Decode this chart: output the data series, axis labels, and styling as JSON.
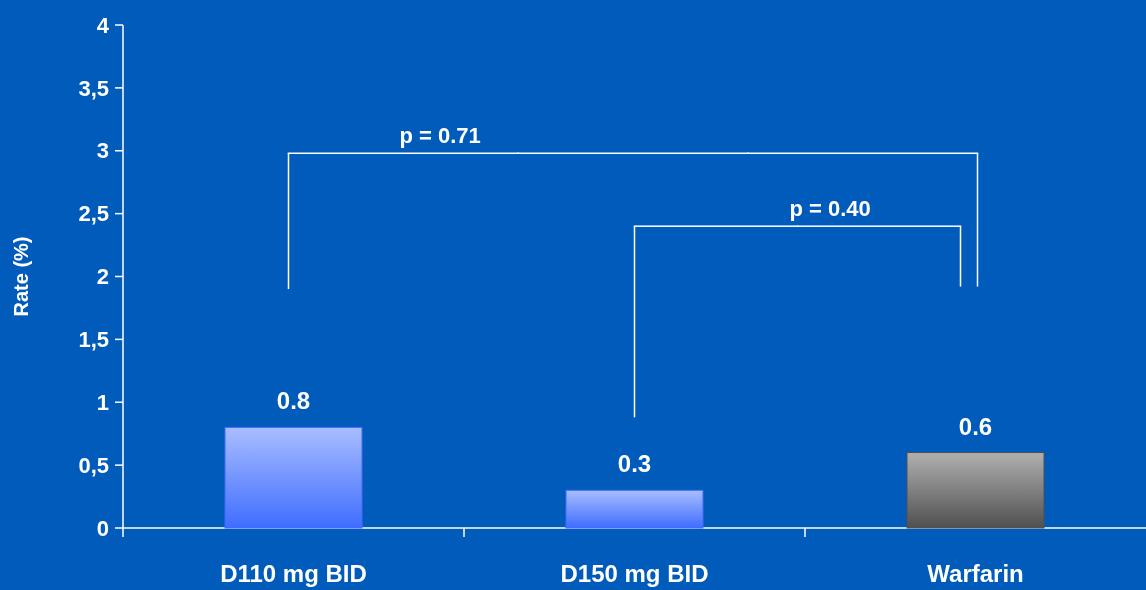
{
  "chart_data": {
    "type": "bar",
    "ylabel": "Rate (%)",
    "categories": [
      "D110 mg BID",
      "D150 mg BID",
      "Warfarin"
    ],
    "values": [
      0.8,
      0.3,
      0.6
    ],
    "colors": [
      "#3f6dff",
      "#3f6dff",
      "#505050"
    ],
    "data_labels": true,
    "ylim": [
      0,
      4
    ],
    "yticks": [
      0,
      {
        "value": 0.5,
        "label": "0,5"
      },
      1,
      {
        "value": 1.5,
        "label": "1,5"
      },
      2,
      {
        "value": 2.5,
        "label": "2,5"
      },
      3,
      {
        "value": 3.5,
        "label": "3,5"
      },
      4
    ],
    "annotations": [
      "p = 0.71",
      "p = 0.40"
    ],
    "grid": false
  }
}
